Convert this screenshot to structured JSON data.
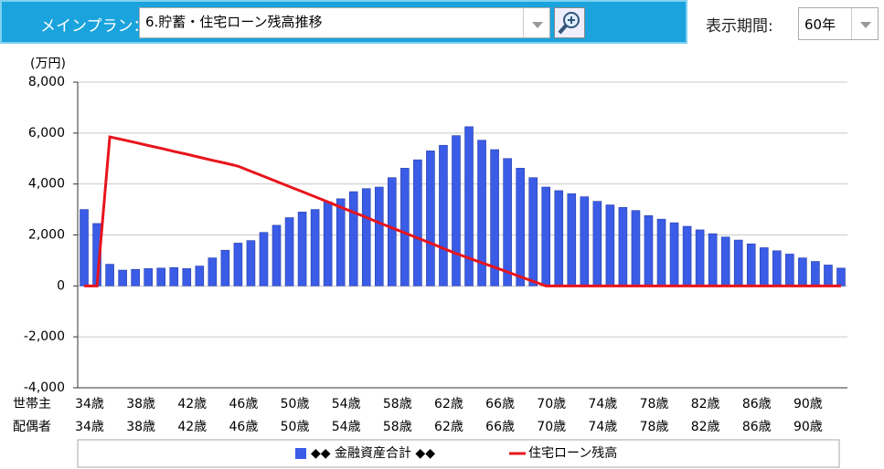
{
  "header": {
    "plan_label": "メインプラン：",
    "plan_value": "6.貯蓄・住宅ローン残高推移",
    "period_label": "表示期間:",
    "period_value": "60年"
  },
  "chart_data": {
    "type": "bar-line",
    "y_unit": "(万円)",
    "row_names": [
      "世帯主",
      "配偶者"
    ],
    "categories": [
      "34歳",
      null,
      null,
      null,
      "38歳",
      null,
      null,
      null,
      "42歳",
      null,
      null,
      null,
      "46歳",
      null,
      null,
      null,
      "50歳",
      null,
      null,
      null,
      "54歳",
      null,
      null,
      null,
      "58歳",
      null,
      null,
      null,
      "62歳",
      null,
      null,
      null,
      "66歳",
      null,
      null,
      null,
      "70歳",
      null,
      null,
      null,
      "74歳",
      null,
      null,
      null,
      "78歳",
      null,
      null,
      null,
      "82歳",
      null,
      null,
      null,
      "86歳",
      null,
      null,
      null,
      "90歳",
      null,
      null,
      null
    ],
    "categories2": [
      "34歳",
      null,
      null,
      null,
      "38歳",
      null,
      null,
      null,
      "42歳",
      null,
      null,
      null,
      "46歳",
      null,
      null,
      null,
      "50歳",
      null,
      null,
      null,
      "54歳",
      null,
      null,
      null,
      "58歳",
      null,
      null,
      null,
      "62歳",
      null,
      null,
      null,
      "66歳",
      null,
      null,
      null,
      "70歳",
      null,
      null,
      null,
      "74歳",
      null,
      null,
      null,
      "78歳",
      null,
      null,
      null,
      "82歳",
      null,
      null,
      null,
      "86歳",
      null,
      null,
      null,
      "90歳",
      null,
      null,
      null
    ],
    "series": [
      {
        "name": "◆◆ 金融資産合計 ◆◆",
        "kind": "bar",
        "color": "#3a5ce6",
        "values": [
          3000,
          2450,
          850,
          620,
          650,
          680,
          700,
          720,
          680,
          780,
          1100,
          1400,
          1680,
          1780,
          2100,
          2380,
          2680,
          2900,
          3000,
          3300,
          3420,
          3700,
          3820,
          3880,
          4250,
          4620,
          4950,
          5300,
          5520,
          5900,
          6250,
          5720,
          5350,
          5000,
          4620,
          4250,
          3880,
          3740,
          3620,
          3500,
          3320,
          3180,
          3080,
          2960,
          2760,
          2620,
          2480,
          2340,
          2200,
          2050,
          1920,
          1800,
          1650,
          1500,
          1380,
          1250,
          1100,
          960,
          820,
          700
        ]
      },
      {
        "name": "住宅ローン残高",
        "kind": "line",
        "color": "#e8141c",
        "values": [
          0,
          0,
          5850,
          5740,
          5630,
          5510,
          5400,
          5280,
          5170,
          5050,
          4930,
          4820,
          4700,
          4500,
          4300,
          4100,
          3900,
          3700,
          3500,
          3300,
          3090,
          2890,
          2690,
          2480,
          2280,
          2080,
          1880,
          1680,
          1470,
          1270,
          1090,
          910,
          730,
          550,
          360,
          180,
          0,
          0,
          0,
          0,
          0,
          0,
          0,
          0,
          0,
          0,
          0,
          0,
          0,
          0,
          0,
          0,
          0,
          0,
          0,
          0,
          0,
          0,
          0,
          0
        ]
      }
    ],
    "ylim": [
      -4000,
      8000
    ],
    "yticks": [
      {
        "value": -4000,
        "label": "-4,000"
      },
      {
        "value": -2000,
        "label": "-2,000"
      },
      0,
      {
        "value": 2000,
        "label": "2,000"
      },
      {
        "value": 4000,
        "label": "4,000"
      },
      {
        "value": 6000,
        "label": "6,000"
      },
      {
        "value": 8000,
        "label": "8,000"
      }
    ],
    "grid": true
  }
}
